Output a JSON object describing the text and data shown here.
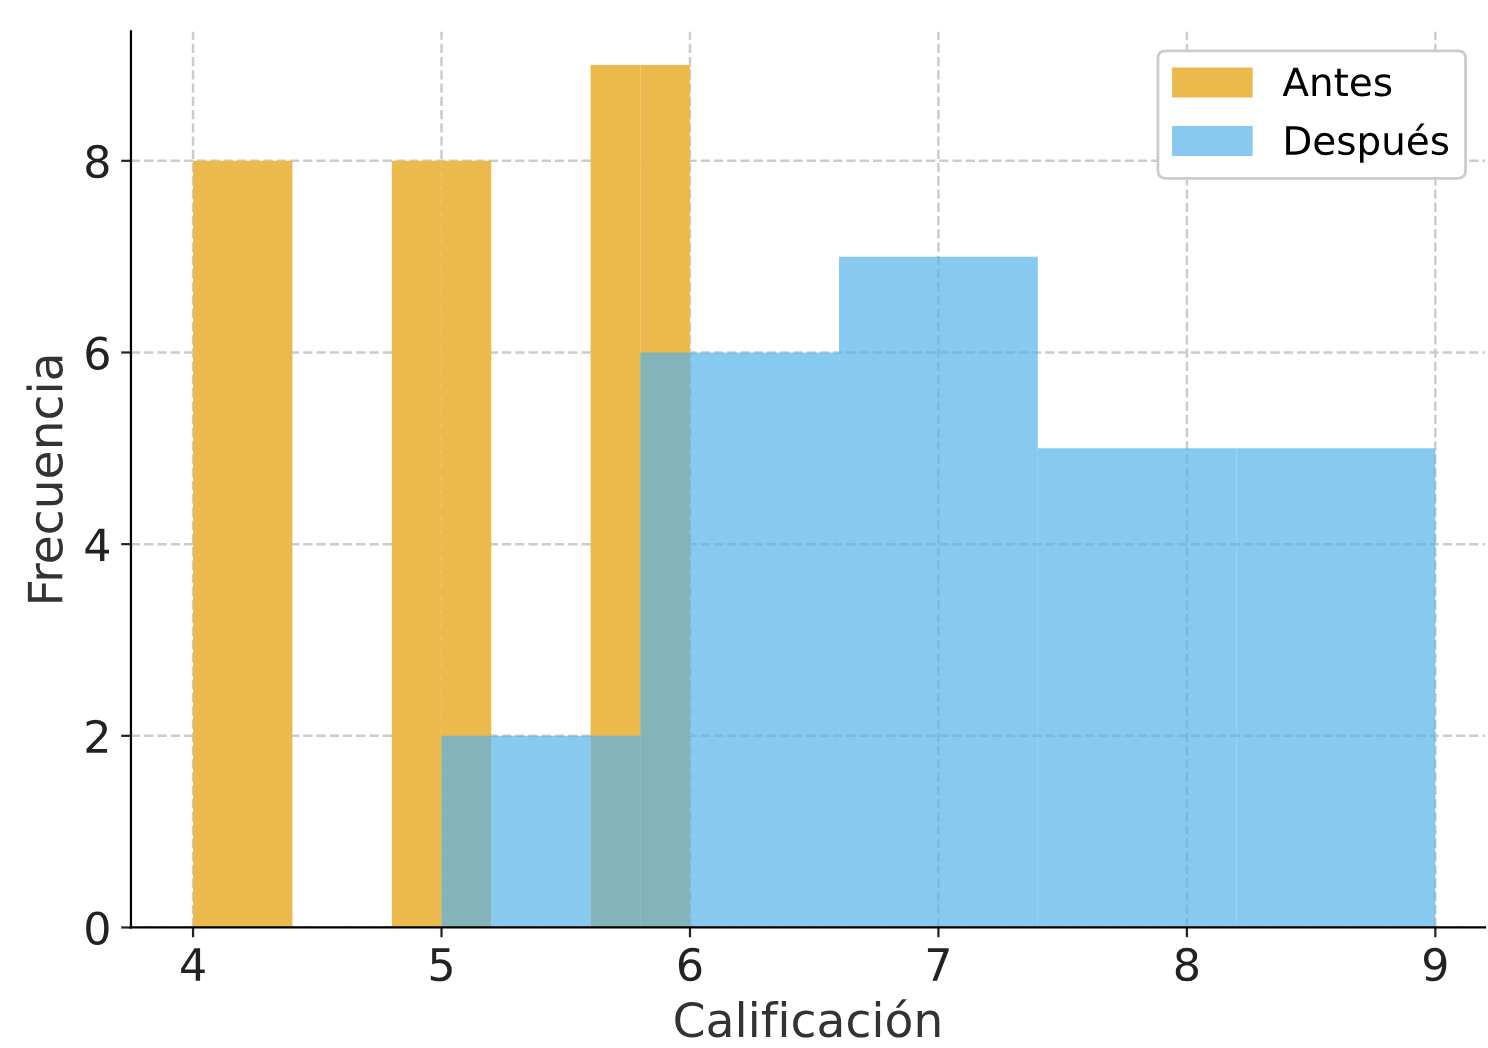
{
  "chart_data": {
    "type": "histogram",
    "xlabel": "Calificación",
    "ylabel": "Frecuencia",
    "bins": [
      4.0,
      4.4,
      4.8,
      5.0,
      5.2,
      5.6,
      5.8,
      6.0,
      6.6,
      7.4,
      8.2,
      9.0
    ],
    "series": [
      {
        "name": "Antes",
        "color": "#ecb94c",
        "values": [
          8,
          0,
          8,
          8,
          0,
          9,
          9,
          null,
          null,
          null,
          null
        ]
      },
      {
        "name": "Después",
        "color": "#89c9ef",
        "values": [
          null,
          null,
          null,
          2,
          2,
          2,
          6,
          6,
          7,
          5,
          5
        ]
      }
    ],
    "xlim": [
      3.75,
      9.2
    ],
    "ylim": [
      0,
      9.35
    ],
    "xticks": [
      4,
      5,
      6,
      7,
      8,
      9
    ],
    "yticks": [
      0,
      2,
      4,
      6,
      8
    ],
    "grid": true,
    "legend": "top right"
  }
}
